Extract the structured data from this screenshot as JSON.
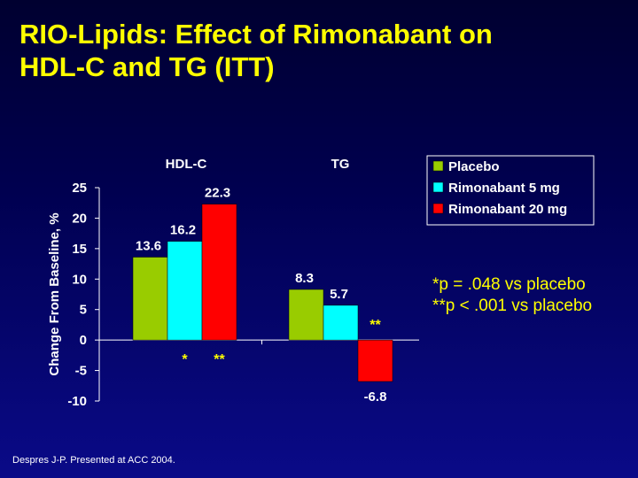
{
  "slide": {
    "title_line1": "RIO-Lipids: Effect of Rimonabant on",
    "title_line2": "HDL-C and TG (ITT)",
    "footnote1": "*p = .048 vs placebo",
    "footnote2": "**p < .001 vs placebo",
    "source": "Despres J-P. Presented at ACC 2004."
  },
  "colors": {
    "title": "#FFFF00",
    "background_top": "#000030",
    "background_bottom": "#0A0A88",
    "placebo": "#99CC00",
    "rimonabant_5": "#00FFFF",
    "rimonabant_20": "#FF0000"
  },
  "chart_data": {
    "type": "bar",
    "categories": [
      "HDL-C",
      "TG"
    ],
    "series": [
      {
        "name": "Placebo",
        "values": [
          13.6,
          8.3
        ],
        "color": "#99CC00",
        "markers": [
          "",
          ""
        ]
      },
      {
        "name": "Rimonabant 5 mg",
        "values": [
          16.2,
          5.7
        ],
        "color": "#00FFFF",
        "markers": [
          "*",
          ""
        ]
      },
      {
        "name": "Rimonabant 20 mg",
        "values": [
          22.3,
          -6.8
        ],
        "color": "#FF0000",
        "markers": [
          "**",
          "**"
        ]
      }
    ],
    "ylabel": "Change From Baseline, %",
    "xlabel": "",
    "ylim": [
      -10,
      25
    ],
    "yticks": [
      25,
      20,
      15,
      10,
      5,
      0,
      -5,
      -10
    ],
    "grid": false,
    "legend": "top-right"
  }
}
